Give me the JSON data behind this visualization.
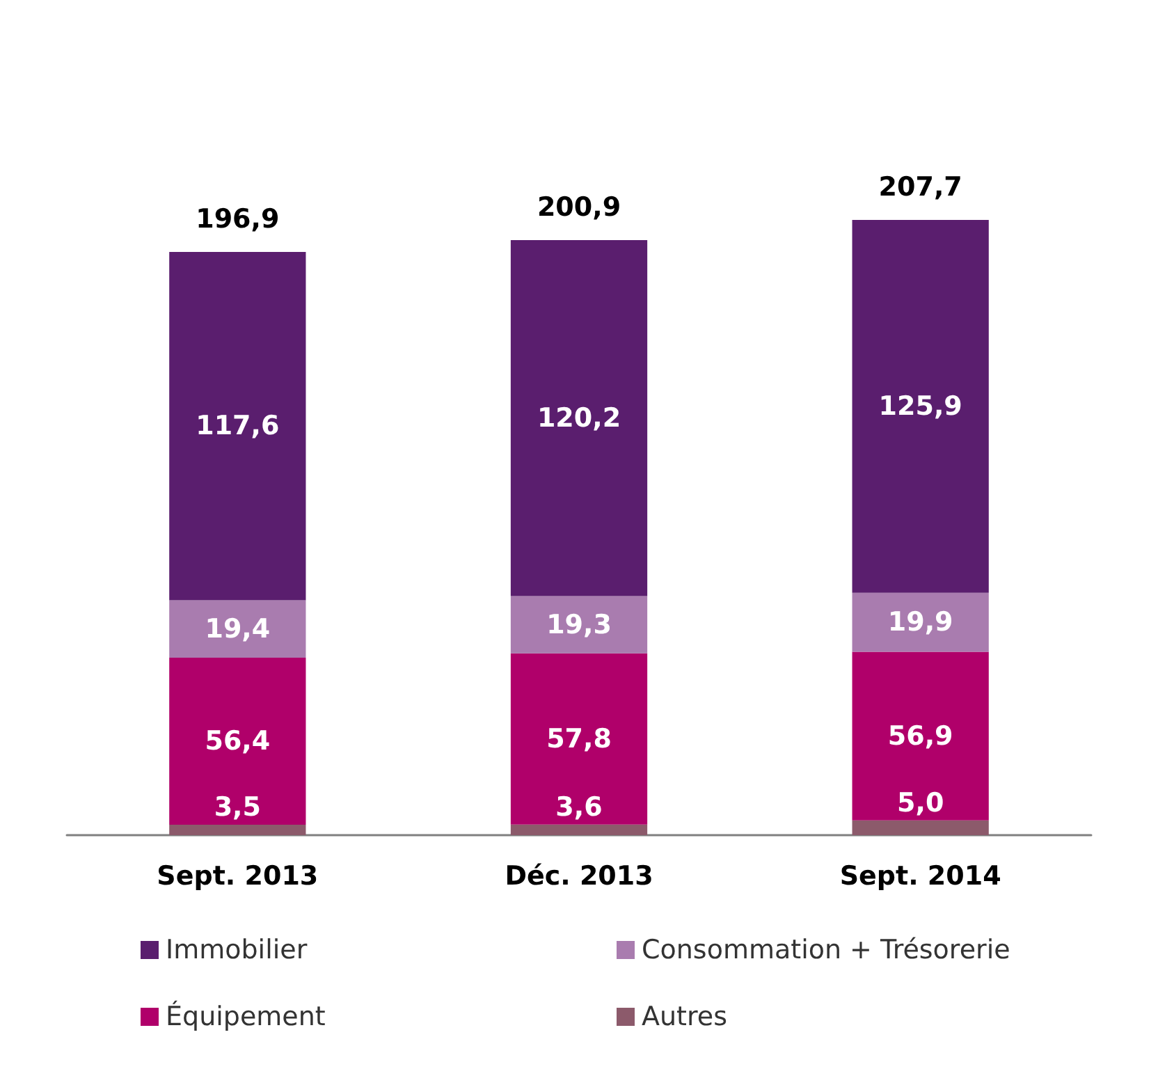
{
  "chart_data": {
    "type": "bar",
    "stacked": true,
    "categories": [
      "Sept. 2013",
      "Déc. 2013",
      "Sept. 2014"
    ],
    "series": [
      {
        "name": "Autres",
        "color": "#8c5a6b",
        "values": [
          3.5,
          3.6,
          5.0
        ],
        "value_labels": [
          "3,5",
          "3,6",
          "5,0"
        ]
      },
      {
        "name": "Équipement",
        "color": "#b0006a",
        "values": [
          56.4,
          57.8,
          56.9
        ],
        "value_labels": [
          "56,4",
          "57,8",
          "56,9"
        ]
      },
      {
        "name": "Consommation + Trésorerie",
        "color": "#a97caf",
        "values": [
          19.4,
          19.3,
          19.9
        ],
        "value_labels": [
          "19,4",
          "19,3",
          "19,9"
        ]
      },
      {
        "name": "Immobilier",
        "color": "#5a1e6e",
        "values": [
          117.6,
          120.2,
          125.9
        ],
        "value_labels": [
          "117,6",
          "120,2",
          "125,9"
        ]
      }
    ],
    "totals": [
      "196,9",
      "200,9",
      "207,7"
    ],
    "legend": "bottom",
    "grid": false
  }
}
